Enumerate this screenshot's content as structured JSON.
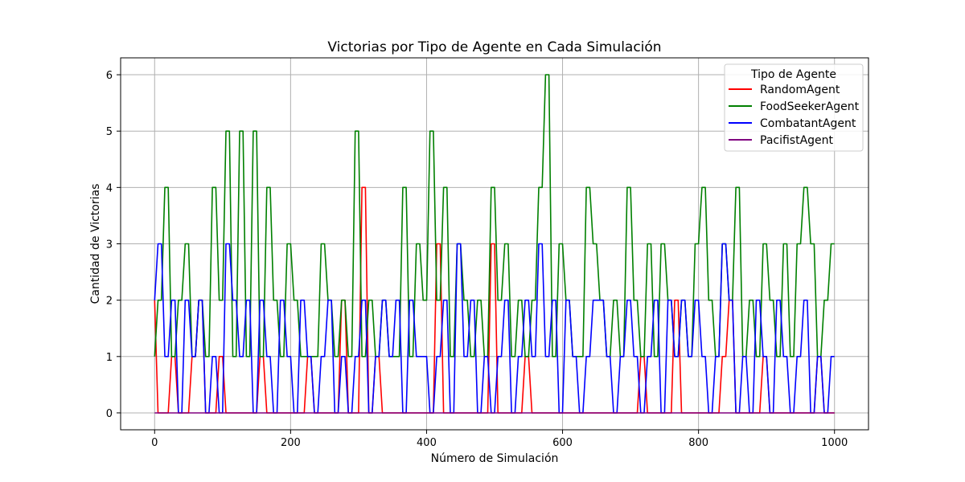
{
  "chart_data": {
    "type": "line",
    "title": "Victorias por Tipo de Agente en Cada Simulación",
    "xlabel": "Número de Simulación",
    "ylabel": "Cantidad de Victorias",
    "xlim": [
      -50,
      1050
    ],
    "ylim": [
      -0.3,
      6.3
    ],
    "xticks": [
      0,
      200,
      400,
      600,
      800,
      1000
    ],
    "yticks": [
      0,
      1,
      2,
      3,
      4,
      5,
      6
    ],
    "grid": true,
    "legend": {
      "title": "Tipo de Agente",
      "placement": "top-right"
    },
    "series_sampling": "x = 0..1000 step 10 (approximate reading of a dense line)",
    "x": [
      0,
      10,
      20,
      30,
      40,
      50,
      60,
      70,
      80,
      90,
      100,
      110,
      120,
      130,
      140,
      150,
      160,
      170,
      180,
      190,
      200,
      210,
      220,
      230,
      240,
      250,
      260,
      270,
      280,
      290,
      300,
      310,
      320,
      330,
      340,
      350,
      360,
      370,
      380,
      390,
      400,
      410,
      420,
      430,
      440,
      450,
      460,
      470,
      480,
      490,
      500,
      510,
      520,
      530,
      540,
      550,
      560,
      570,
      580,
      590,
      600,
      610,
      620,
      630,
      640,
      650,
      660,
      670,
      680,
      690,
      700,
      710,
      720,
      730,
      740,
      750,
      760,
      770,
      780,
      790,
      800,
      810,
      820,
      830,
      840,
      850,
      860,
      870,
      880,
      890,
      900,
      910,
      920,
      930,
      940,
      950,
      960,
      970,
      980,
      990,
      1000
    ],
    "series": [
      {
        "name": "RandomAgent",
        "color": "#ff0000",
        "values": [
          2,
          0,
          0,
          1,
          0,
          0,
          1,
          2,
          0,
          0,
          1,
          0,
          0,
          0,
          0,
          0,
          1,
          0,
          0,
          0,
          0,
          0,
          0,
          1,
          0,
          0,
          0,
          0,
          2,
          0,
          0,
          4,
          0,
          1,
          0,
          0,
          0,
          0,
          0,
          0,
          0,
          0,
          3,
          0,
          0,
          0,
          0,
          0,
          0,
          0,
          3,
          0,
          0,
          0,
          0,
          1,
          0,
          0,
          0,
          0,
          0,
          0,
          0,
          0,
          0,
          0,
          0,
          0,
          0,
          0,
          0,
          0,
          1,
          0,
          0,
          0,
          0,
          2,
          0,
          0,
          0,
          0,
          0,
          0,
          1,
          2,
          0,
          0,
          0,
          0,
          1,
          0,
          0,
          0,
          0,
          0,
          0,
          0,
          1,
          0,
          0
        ]
      },
      {
        "name": "FoodSeekerAgent",
        "color": "#008000",
        "values": [
          1,
          2,
          4,
          1,
          2,
          3,
          1,
          2,
          1,
          4,
          2,
          5,
          1,
          5,
          1,
          5,
          1,
          4,
          2,
          1,
          3,
          2,
          1,
          1,
          1,
          3,
          2,
          1,
          2,
          1,
          5,
          1,
          2,
          1,
          2,
          1,
          1,
          4,
          1,
          3,
          2,
          5,
          2,
          4,
          1,
          3,
          2,
          1,
          2,
          1,
          4,
          2,
          3,
          1,
          2,
          1,
          2,
          4,
          6,
          1,
          3,
          2,
          1,
          1,
          4,
          3,
          2,
          1,
          2,
          1,
          4,
          2,
          1,
          3,
          1,
          3,
          2,
          1,
          2,
          1,
          3,
          4,
          2,
          1,
          3,
          2,
          4,
          1,
          2,
          1,
          3,
          2,
          1,
          3,
          1,
          3,
          4,
          3,
          1,
          2,
          3
        ]
      },
      {
        "name": "CombatantAgent",
        "color": "#0000ff",
        "values": [
          2,
          3,
          1,
          2,
          0,
          2,
          1,
          2,
          0,
          1,
          0,
          3,
          2,
          1,
          2,
          0,
          2,
          1,
          0,
          2,
          1,
          0,
          2,
          1,
          0,
          1,
          2,
          0,
          1,
          0,
          1,
          2,
          0,
          1,
          2,
          1,
          2,
          0,
          2,
          1,
          1,
          0,
          1,
          2,
          0,
          3,
          1,
          2,
          0,
          1,
          0,
          1,
          2,
          0,
          1,
          2,
          1,
          3,
          1,
          2,
          0,
          2,
          1,
          0,
          1,
          2,
          2,
          1,
          0,
          1,
          2,
          1,
          0,
          1,
          2,
          0,
          2,
          1,
          2,
          1,
          2,
          1,
          0,
          1,
          3,
          2,
          0,
          1,
          0,
          2,
          1,
          0,
          2,
          1,
          0,
          1,
          2,
          0,
          1,
          0,
          1
        ]
      },
      {
        "name": "PacifistAgent",
        "color": "#800080",
        "values": [
          0,
          0,
          0,
          0,
          0,
          0,
          0,
          0,
          0,
          0,
          0,
          0,
          0,
          0,
          0,
          0,
          0,
          0,
          0,
          0,
          0,
          0,
          0,
          0,
          0,
          0,
          0,
          0,
          0,
          0,
          0,
          0,
          0,
          0,
          0,
          0,
          0,
          0,
          0,
          0,
          0,
          0,
          0,
          0,
          0,
          0,
          0,
          0,
          0,
          0,
          0,
          0,
          0,
          0,
          0,
          0,
          0,
          0,
          0,
          0,
          0,
          0,
          0,
          0,
          0,
          0,
          0,
          0,
          0,
          0,
          0,
          0,
          0,
          0,
          0,
          0,
          0,
          0,
          0,
          0,
          0,
          0,
          0,
          0,
          0,
          0,
          0,
          0,
          0,
          0,
          0,
          0,
          0,
          0,
          0,
          0,
          0,
          0,
          0,
          0,
          0
        ]
      }
    ]
  }
}
